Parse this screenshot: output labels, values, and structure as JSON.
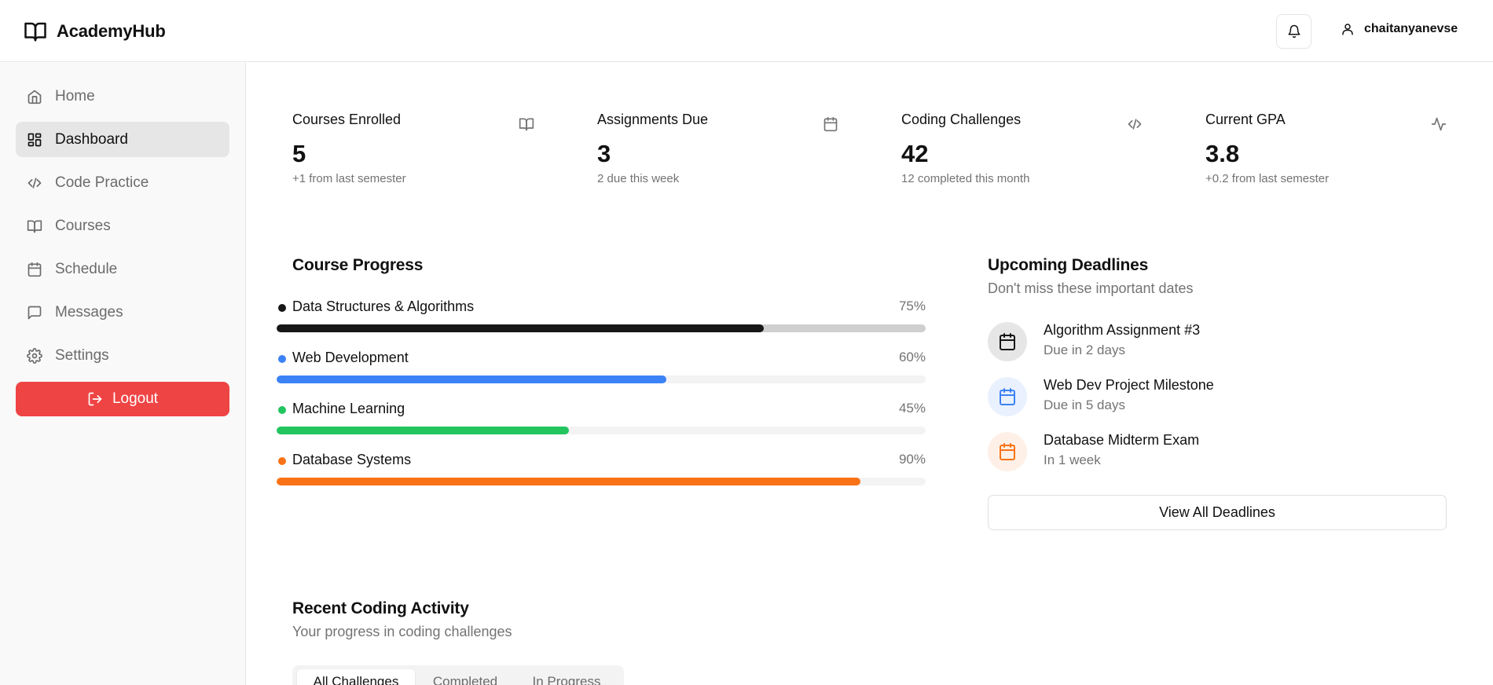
{
  "header": {
    "brand": "AcademyHub",
    "username": "chaitanyanevse"
  },
  "sidebar": {
    "items": [
      {
        "label": "Home",
        "icon": "home-icon"
      },
      {
        "label": "Dashboard",
        "icon": "dashboard-icon"
      },
      {
        "label": "Code Practice",
        "icon": "code-icon"
      },
      {
        "label": "Courses",
        "icon": "book-icon"
      },
      {
        "label": "Schedule",
        "icon": "calendar-icon"
      },
      {
        "label": "Messages",
        "icon": "message-icon"
      },
      {
        "label": "Settings",
        "icon": "gear-icon"
      }
    ],
    "active": "Dashboard",
    "logout_label": "Logout"
  },
  "stats": [
    {
      "title": "Courses Enrolled",
      "value": "5",
      "sub": "+1 from last semester",
      "icon": "book-icon"
    },
    {
      "title": "Assignments Due",
      "value": "3",
      "sub": "2 due this week",
      "icon": "calendar-icon"
    },
    {
      "title": "Coding Challenges",
      "value": "42",
      "sub": "12 completed this month",
      "icon": "code-icon"
    },
    {
      "title": "Current GPA",
      "value": "3.8",
      "sub": "+0.2 from last semester",
      "icon": "activity-icon"
    }
  ],
  "course_progress": {
    "title": "Course Progress",
    "courses": [
      {
        "name": "Data Structures & Algorithms",
        "pct_label": "75%",
        "progress": 75,
        "color": "#171717"
      },
      {
        "name": "Web Development",
        "pct_label": "60%",
        "progress": 60,
        "color": "#3b82f6"
      },
      {
        "name": "Machine Learning",
        "pct_label": "45%",
        "progress": 45,
        "color": "#22c55e"
      },
      {
        "name": "Database Systems",
        "pct_label": "90%",
        "progress": 90,
        "color": "#f97316"
      }
    ]
  },
  "deadlines": {
    "title": "Upcoming Deadlines",
    "subtitle": "Don't miss these important dates",
    "items": [
      {
        "title": "Algorithm Assignment #3",
        "due": "Due in 2 days",
        "color": "#171717",
        "bg": "#e6e6e6"
      },
      {
        "title": "Web Dev Project Milestone",
        "due": "Due in 5 days",
        "color": "#3b82f6",
        "bg": "#eaf1fe"
      },
      {
        "title": "Database Midterm Exam",
        "due": "In 1 week",
        "color": "#f97316",
        "bg": "#fef0e6"
      }
    ],
    "view_all_label": "View All Deadlines"
  },
  "coding_activity": {
    "title": "Recent Coding Activity",
    "subtitle": "Your progress in coding challenges",
    "tabs": [
      "All Challenges",
      "Completed",
      "In Progress"
    ],
    "active_tab": "All Challenges"
  }
}
